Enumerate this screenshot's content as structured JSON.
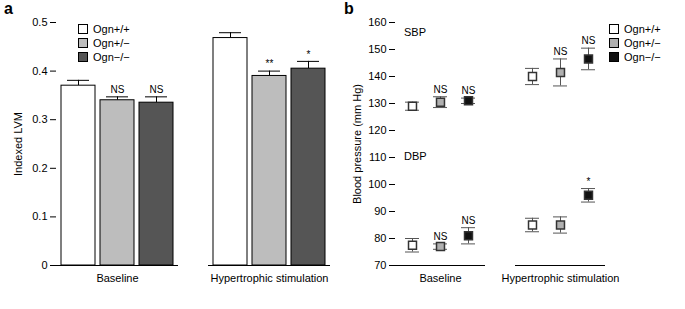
{
  "chart_data": [
    {
      "type": "bar",
      "panel": "a",
      "y_label": "Indexed LVM",
      "categories": [
        "Baseline",
        "Hypertrophic stimulation"
      ],
      "series": [
        {
          "name": "Ogn+/+",
          "color": "#ffffff",
          "values": [
            0.37,
            0.468
          ],
          "errors": [
            0.011,
            0.011
          ],
          "annotations": [
            null,
            null
          ]
        },
        {
          "name": "Ogn+/−",
          "color": "#bdbdbd",
          "values": [
            0.34,
            0.39
          ],
          "errors": [
            0.007,
            0.01
          ],
          "annotations": [
            "NS",
            "**"
          ]
        },
        {
          "name": "Ogn−/−",
          "color": "#555555",
          "values": [
            0.335,
            0.405
          ],
          "errors": [
            0.012,
            0.015
          ],
          "annotations": [
            "NS",
            "*"
          ]
        }
      ],
      "ylim": [
        0,
        0.5
      ],
      "yticks": [
        0,
        0.1,
        0.2,
        0.3,
        0.4,
        0.5
      ],
      "legend": "top-left"
    },
    {
      "type": "scatter",
      "panel": "b",
      "y_label": "Blood pressure (mm Hg)",
      "categories": [
        "Baseline",
        "Hypertrophic stimulation"
      ],
      "series": [
        {
          "name": "Ogn+/+",
          "color": "#ffffff",
          "marker": "square",
          "measures": [
            {
              "name": "SBP",
              "values": [
                129,
                140
              ],
              "errors": [
                1.5,
                3
              ],
              "annotations": [
                null,
                null
              ]
            },
            {
              "name": "DBP",
              "values": [
                77.5,
                85
              ],
              "errors": [
                2.5,
                2.5
              ],
              "annotations": [
                null,
                null
              ]
            }
          ]
        },
        {
          "name": "Ogn+/−",
          "color": "#b0b0b0",
          "marker": "square",
          "measures": [
            {
              "name": "SBP",
              "values": [
                130.5,
                141.5
              ],
              "errors": [
                2,
                5
              ],
              "annotations": [
                "NS",
                "NS"
              ]
            },
            {
              "name": "DBP",
              "values": [
                77,
                85
              ],
              "errors": [
                1,
                3
              ],
              "annotations": [
                "NS",
                null
              ]
            }
          ]
        },
        {
          "name": "Ogn−/−",
          "color": "#111111",
          "marker": "square",
          "measures": [
            {
              "name": "SBP",
              "values": [
                131,
                146.5
              ],
              "errors": [
                1,
                4
              ],
              "annotations": [
                "NS",
                "NS"
              ]
            },
            {
              "name": "DBP",
              "values": [
                81,
                96
              ],
              "errors": [
                3,
                2.5
              ],
              "annotations": [
                "NS",
                "*"
              ]
            }
          ]
        }
      ],
      "ylim": [
        70,
        160
      ],
      "yticks": [
        70,
        80,
        90,
        100,
        110,
        120,
        130,
        140,
        150,
        160
      ],
      "legend": "top-right"
    }
  ]
}
